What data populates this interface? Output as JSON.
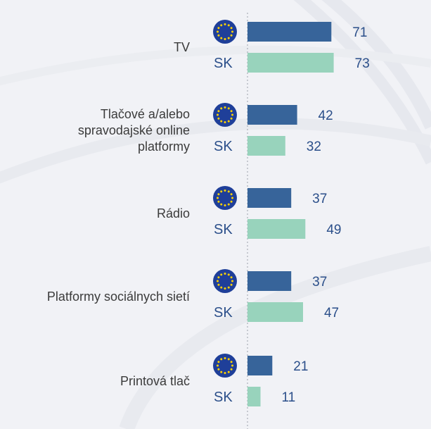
{
  "chart_data": {
    "type": "bar",
    "orientation": "horizontal",
    "categories": [
      "TV",
      "Tlačové a/alebo spravodajské online platformy",
      "Rádio",
      "Platformy sociálnych sietí",
      "Printová tlač"
    ],
    "category_lines": [
      [
        "TV"
      ],
      [
        "Tlačové a/alebo",
        "spravodajské online",
        "platformy"
      ],
      [
        "Rádio"
      ],
      [
        "Platformy sociálnych sietí"
      ],
      [
        "Printová tlač"
      ]
    ],
    "series": [
      {
        "marker": "eu-flag-icon",
        "values": [
          71,
          42,
          37,
          37,
          21
        ]
      },
      {
        "name": "SK",
        "values": [
          73,
          32,
          49,
          47,
          11
        ]
      }
    ],
    "xlim": [
      0,
      100
    ],
    "grid": false,
    "colors": {
      "eu": "#37649a",
      "sk": "#98d3bc",
      "flag_bg": "#1f3f99",
      "flag_star": "#ffd200",
      "text_value": "#2b4f8a",
      "text_category": "#3b3b3b",
      "baseline": "#9aa0aa"
    }
  }
}
